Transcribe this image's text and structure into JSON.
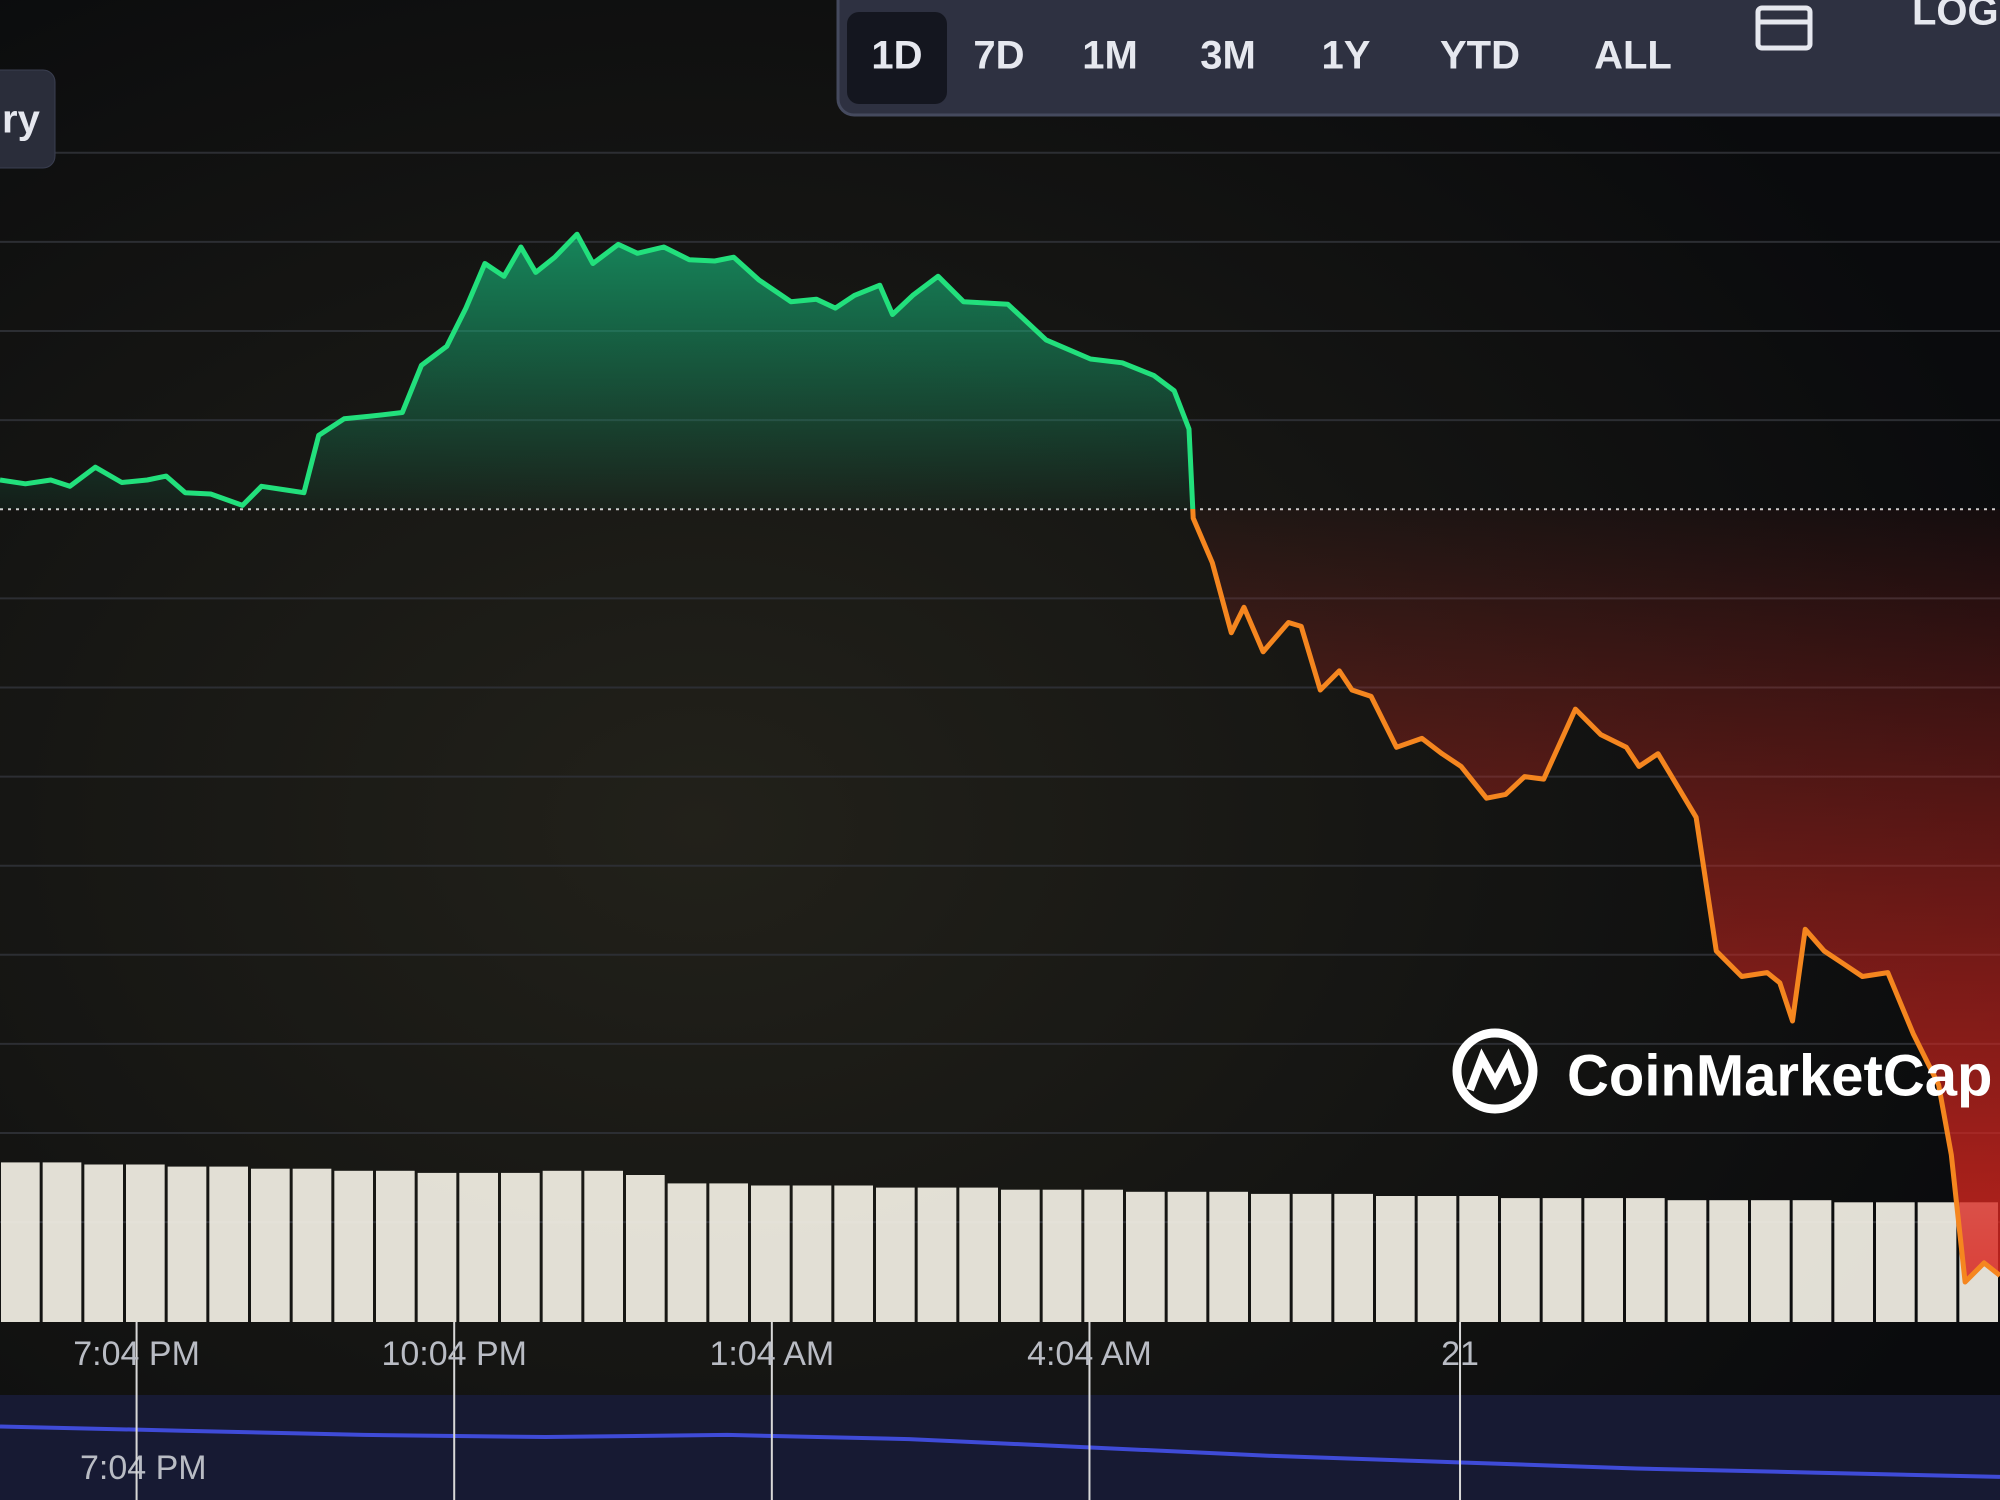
{
  "header": {
    "side_button": "ry",
    "time_ranges": [
      "1D",
      "7D",
      "1M",
      "3M",
      "1Y",
      "YTD",
      "ALL"
    ],
    "selected_range": "1D",
    "log_button": "LOG"
  },
  "watermark": "CoinMarketCap",
  "chart_data": {
    "type": "line",
    "x": [
      -1.29,
      -1.05,
      -0.81,
      -0.63,
      -0.39,
      -0.14,
      0.1,
      0.28,
      0.46,
      0.7,
      1.0,
      1.18,
      1.42,
      1.58,
      1.72,
      1.96,
      2.2,
      2.51,
      2.69,
      2.93,
      3.11,
      3.29,
      3.47,
      3.63,
      3.77,
      3.95,
      4.16,
      4.31,
      4.55,
      4.73,
      4.98,
      5.22,
      5.46,
      5.64,
      5.88,
      6.18,
      6.42,
      6.6,
      6.78,
      7.02,
      7.14,
      7.33,
      7.57,
      7.81,
      8.23,
      8.59,
      9.01,
      9.31,
      9.61,
      9.8,
      9.94,
      9.98,
      10.16,
      10.34,
      10.46,
      10.64,
      10.88,
      11.0,
      11.18,
      11.36,
      11.48,
      11.66,
      11.9,
      12.14,
      12.33,
      12.51,
      12.75,
      12.93,
      13.11,
      13.29,
      13.59,
      13.83,
      14.07,
      14.19,
      14.37,
      14.55,
      14.73,
      14.92,
      15.16,
      15.4,
      15.52,
      15.64,
      15.76,
      15.94,
      16.12,
      16.3,
      16.54,
      16.78,
      17.02,
      17.14,
      17.27,
      17.45,
      17.6
    ],
    "values": [
      2.3,
      2.0,
      2.3,
      1.8,
      3.3,
      2.1,
      2.3,
      2.6,
      1.3,
      1.2,
      0.3,
      1.8,
      1.5,
      1.3,
      5.8,
      7.1,
      7.3,
      7.6,
      11.3,
      12.8,
      15.8,
      19.3,
      18.3,
      20.6,
      18.6,
      19.8,
      21.6,
      19.3,
      20.8,
      20.1,
      20.6,
      19.6,
      19.5,
      19.8,
      18.0,
      16.3,
      16.5,
      15.8,
      16.8,
      17.6,
      15.3,
      16.8,
      18.3,
      16.3,
      16.1,
      13.3,
      11.8,
      11.5,
      10.5,
      9.3,
      6.3,
      -0.7,
      -4.2,
      -9.7,
      -7.7,
      -11.2,
      -8.9,
      -9.2,
      -14.2,
      -12.7,
      -14.2,
      -14.7,
      -18.7,
      -18.0,
      -19.2,
      -20.2,
      -22.7,
      -22.4,
      -21.0,
      -21.2,
      -15.7,
      -17.7,
      -18.7,
      -20.2,
      -19.2,
      -21.7,
      -24.2,
      -34.7,
      -36.7,
      -36.4,
      -37.2,
      -40.2,
      -33.0,
      -34.7,
      -35.7,
      -36.7,
      -36.4,
      -41.2,
      -45.2,
      -50.7,
      -60.7,
      -59.2,
      -60.2
    ],
    "baseline": 0,
    "color_up": "#22e07c",
    "color_down": "#f5861f",
    "fill_up": "#16c784",
    "fill_down": "#d8261f",
    "xlim": [
      -1.29,
      17.6
    ],
    "ylim": [
      -64,
      40
    ],
    "xticks": [
      {
        "value": 0,
        "label": "7:04 PM"
      },
      {
        "value": 3,
        "label": "10:04 PM"
      },
      {
        "value": 6,
        "label": "1:04 AM"
      },
      {
        "value": 9,
        "label": "4:04 AM"
      },
      {
        "value": 12.5,
        "label": "21"
      }
    ],
    "yticks": [
      28,
      21,
      14,
      7,
      0,
      -7,
      -14,
      -21,
      -28,
      -35,
      -42,
      -49,
      -56
    ],
    "grid": true,
    "volume": {
      "color": "#f4f1e6",
      "ylim": [
        0,
        10
      ],
      "values": [
        7.6,
        7.6,
        7.5,
        7.5,
        7.4,
        7.4,
        7.3,
        7.3,
        7.2,
        7.2,
        7.1,
        7.1,
        7.1,
        7.2,
        7.2,
        7.0,
        6.6,
        6.6,
        6.5,
        6.5,
        6.5,
        6.4,
        6.4,
        6.4,
        6.3,
        6.3,
        6.3,
        6.2,
        6.2,
        6.2,
        6.1,
        6.1,
        6.1,
        6.0,
        6.0,
        6.0,
        5.9,
        5.9,
        5.9,
        5.9,
        5.8,
        5.8,
        5.8,
        5.8,
        5.7,
        5.7,
        5.7,
        5.7
      ]
    },
    "navigator": {
      "label": "7:04 PM",
      "color": "#3f4bd8",
      "ylim": [
        0,
        1
      ],
      "values": [
        0.7,
        0.66,
        0.62,
        0.6,
        0.62,
        0.58,
        0.5,
        0.42,
        0.36,
        0.3,
        0.26,
        0.22
      ]
    }
  }
}
